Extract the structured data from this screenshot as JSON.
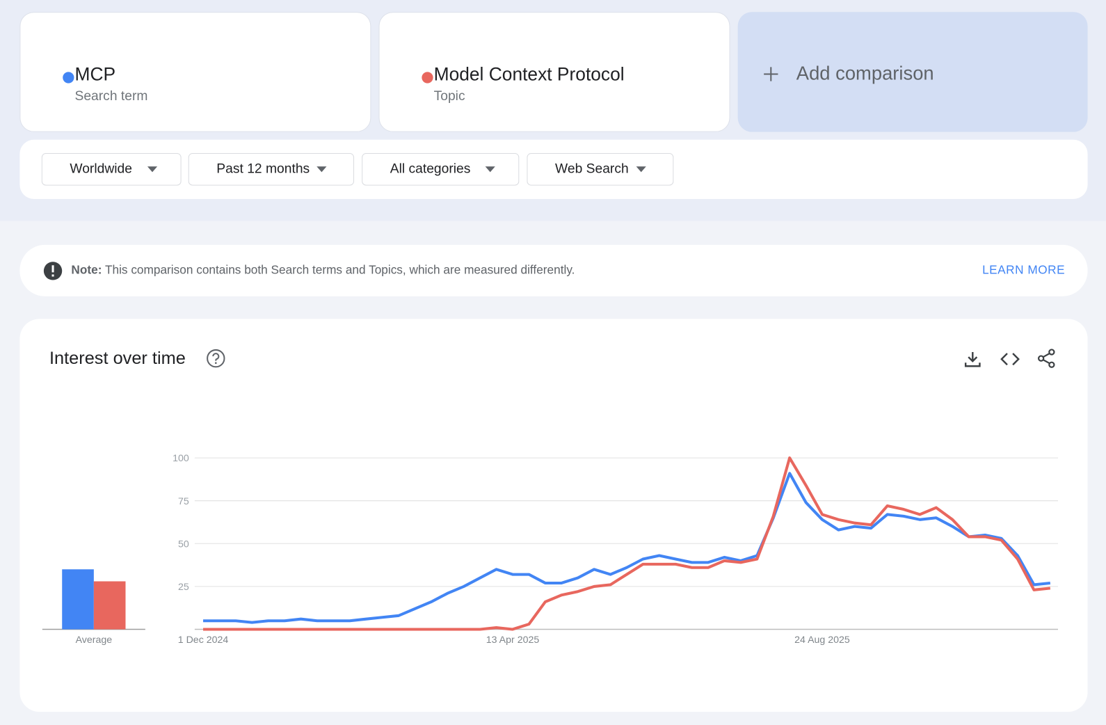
{
  "filters": [
    "Worldwide",
    "Past 12 months",
    "All categories",
    "Web Search"
  ],
  "add_comparison": "Add comparison",
  "note": {
    "label": "Note:",
    "text": "This comparison contains both Search terms and Topics, which are measured differently.",
    "link": "LEARN MORE"
  },
  "chart_data": {
    "type": "line",
    "title": "Interest over time",
    "categories": [
      "1 Dec 2024",
      null,
      null,
      null,
      null,
      null,
      null,
      null,
      null,
      null,
      null,
      null,
      null,
      null,
      null,
      null,
      null,
      null,
      null,
      "13 Apr 2025",
      null,
      null,
      null,
      null,
      null,
      null,
      null,
      null,
      null,
      null,
      null,
      null,
      null,
      null,
      null,
      null,
      null,
      null,
      "24 Aug 2025",
      null,
      null,
      null,
      null,
      null,
      null,
      null,
      null,
      null,
      null,
      null,
      null,
      null,
      null
    ],
    "series": [
      {
        "name": "MCP",
        "description": "Search term",
        "color": "#4285f4",
        "values": [
          5,
          5,
          5,
          4,
          5,
          5,
          6,
          5,
          5,
          5,
          6,
          7,
          8,
          12,
          16,
          21,
          25,
          30,
          35,
          32,
          32,
          27,
          27,
          30,
          35,
          32,
          36,
          41,
          43,
          41,
          39,
          39,
          42,
          40,
          43,
          65,
          91,
          74,
          64,
          58,
          60,
          59,
          67,
          66,
          64,
          65,
          60,
          54,
          55,
          53,
          43,
          26,
          27
        ]
      },
      {
        "name": "Model Context Protocol",
        "description": "Topic",
        "color": "#e8675e",
        "values": [
          0,
          0,
          0,
          0,
          0,
          0,
          0,
          0,
          0,
          0,
          0,
          0,
          0,
          0,
          0,
          0,
          0,
          0,
          1,
          0,
          3,
          16,
          20,
          22,
          25,
          26,
          32,
          38,
          38,
          38,
          36,
          36,
          40,
          39,
          41,
          66,
          100,
          84,
          67,
          64,
          62,
          61,
          72,
          70,
          67,
          71,
          64,
          54,
          54,
          52,
          41,
          23,
          24
        ]
      }
    ],
    "average": {
      "label": "Average",
      "values": [
        35,
        28
      ]
    },
    "ylim": [
      0,
      100
    ],
    "yticks": [
      25,
      50,
      75,
      100
    ],
    "grid": true
  }
}
